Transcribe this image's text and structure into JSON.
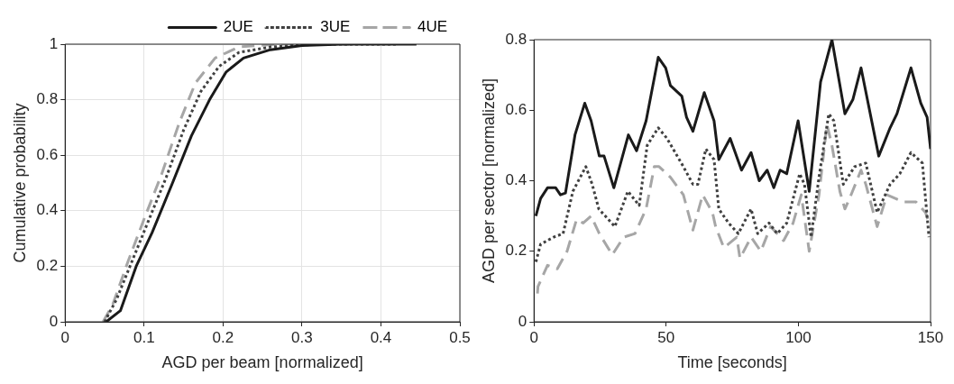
{
  "chart_data": [
    {
      "type": "line",
      "xlabel": "AGD per beam [normalized]",
      "ylabel": "Cumulative probability",
      "xlim": [
        0,
        0.5
      ],
      "xticks": [
        0,
        0.1,
        0.2,
        0.3,
        0.4,
        0.5
      ],
      "ylim": [
        0,
        1
      ],
      "yticks": [
        0,
        0.2,
        0.4,
        0.6,
        0.8,
        1
      ],
      "grid": true,
      "legend": "top",
      "series": [
        {
          "name": "2UE",
          "color": "#1a1a1a",
          "line_style": "solid",
          "x": [
            0.052,
            0.07,
            0.09,
            0.11,
            0.136,
            0.16,
            0.183,
            0.204,
            0.226,
            0.26,
            0.3,
            0.35,
            0.445
          ],
          "values": [
            0,
            0.04,
            0.2,
            0.32,
            0.5,
            0.67,
            0.8,
            0.9,
            0.95,
            0.98,
            0.995,
            1,
            1
          ]
        },
        {
          "name": "3UE",
          "color": "#404040",
          "line_style": "dotted",
          "x": [
            0.05,
            0.065,
            0.085,
            0.105,
            0.128,
            0.15,
            0.172,
            0.195,
            0.22,
            0.26,
            0.32,
            0.42
          ],
          "values": [
            0,
            0.08,
            0.22,
            0.36,
            0.52,
            0.69,
            0.83,
            0.92,
            0.97,
            0.99,
            1,
            1
          ]
        },
        {
          "name": "4UE",
          "color": "#a6a6a6",
          "line_style": "dashed",
          "x": [
            0.048,
            0.06,
            0.08,
            0.1,
            0.122,
            0.145,
            0.165,
            0.19,
            0.22,
            0.27,
            0.36
          ],
          "values": [
            0,
            0.06,
            0.22,
            0.37,
            0.53,
            0.72,
            0.86,
            0.95,
            0.99,
            1,
            1
          ]
        }
      ]
    },
    {
      "type": "line",
      "xlabel": "Time [seconds]",
      "ylabel": "AGD per sector [normalized]",
      "xlim": [
        0,
        150
      ],
      "xticks": [
        0,
        50,
        100,
        150
      ],
      "ylim": [
        0,
        0.8
      ],
      "yticks": [
        0,
        0.2,
        0.4,
        0.6,
        0.8
      ],
      "series": [
        {
          "color": "#1a1a1a",
          "line_style": "solid",
          "x": [
            0.7,
            2.5,
            5.1,
            8.2,
            10,
            11.9,
            15.5,
            19.2,
            21.6,
            24.7,
            26.5,
            30.2,
            35.7,
            38.8,
            42.4,
            47,
            49.8,
            51.6,
            55.9,
            57.7,
            60.1,
            64.4,
            68.1,
            69.9,
            74.2,
            78.5,
            82.1,
            85.2,
            88.2,
            90.7,
            93.1,
            95.6,
            99.9,
            104.1,
            108.4,
            112.7,
            117.6,
            120.6,
            123.7,
            130.4,
            134.7,
            137.3,
            142.6,
            146.3,
            148.7,
            150
          ],
          "values": [
            0.3,
            0.35,
            0.38,
            0.38,
            0.36,
            0.365,
            0.53,
            0.62,
            0.57,
            0.47,
            0.47,
            0.38,
            0.53,
            0.485,
            0.57,
            0.75,
            0.72,
            0.67,
            0.64,
            0.58,
            0.54,
            0.65,
            0.57,
            0.46,
            0.52,
            0.43,
            0.48,
            0.4,
            0.43,
            0.38,
            0.43,
            0.42,
            0.57,
            0.37,
            0.68,
            0.8,
            0.59,
            0.63,
            0.72,
            0.47,
            0.55,
            0.59,
            0.72,
            0.62,
            0.58,
            0.49
          ]
        },
        {
          "color": "#404040",
          "line_style": "dotted",
          "x": [
            0.7,
            2.5,
            7.4,
            11,
            14.7,
            19.6,
            22,
            24.5,
            30.6,
            35.5,
            39.8,
            42.8,
            47,
            50.3,
            56.5,
            60.1,
            62,
            65,
            68.1,
            69.9,
            73.6,
            77.3,
            82.1,
            84.6,
            88.9,
            92,
            95.6,
            100.5,
            102.3,
            104.8,
            107.8,
            111.5,
            113.4,
            117,
            121.3,
            125.5,
            129.8,
            134.7,
            138.4,
            142.6,
            146.9,
            149.4
          ],
          "values": [
            0.17,
            0.22,
            0.24,
            0.25,
            0.37,
            0.44,
            0.39,
            0.32,
            0.27,
            0.37,
            0.33,
            0.5,
            0.55,
            0.52,
            0.44,
            0.39,
            0.39,
            0.49,
            0.46,
            0.32,
            0.28,
            0.25,
            0.32,
            0.25,
            0.28,
            0.25,
            0.28,
            0.42,
            0.39,
            0.24,
            0.41,
            0.59,
            0.57,
            0.39,
            0.44,
            0.45,
            0.31,
            0.39,
            0.42,
            0.48,
            0.45,
            0.24
          ]
        },
        {
          "color": "#a6a6a6",
          "line_style": "dashed",
          "x": [
            1.3,
            1.5,
            5.1,
            8.8,
            12.5,
            16.1,
            18.6,
            21.6,
            24.7,
            29.6,
            33.9,
            38.2,
            42.4,
            45.5,
            47.3,
            51.6,
            56.5,
            60.1,
            63.8,
            67.5,
            68.7,
            71.8,
            76.7,
            77.9,
            82.1,
            85.8,
            89.5,
            94.4,
            98,
            101.1,
            104.1,
            107.8,
            110.8,
            112.7,
            115.7,
            117.6,
            119.4,
            123.7,
            125.5,
            129.8,
            133.5,
            139.6,
            144.5,
            148.1,
            149.4
          ],
          "values": [
            0.08,
            0.1,
            0.16,
            0.15,
            0.2,
            0.29,
            0.28,
            0.3,
            0.25,
            0.19,
            0.24,
            0.25,
            0.32,
            0.44,
            0.44,
            0.41,
            0.36,
            0.26,
            0.36,
            0.31,
            0.27,
            0.21,
            0.24,
            0.18,
            0.24,
            0.2,
            0.27,
            0.23,
            0.28,
            0.36,
            0.2,
            0.36,
            0.56,
            0.5,
            0.37,
            0.32,
            0.35,
            0.43,
            0.39,
            0.27,
            0.36,
            0.34,
            0.34,
            0.31,
            0.28
          ]
        }
      ]
    }
  ]
}
